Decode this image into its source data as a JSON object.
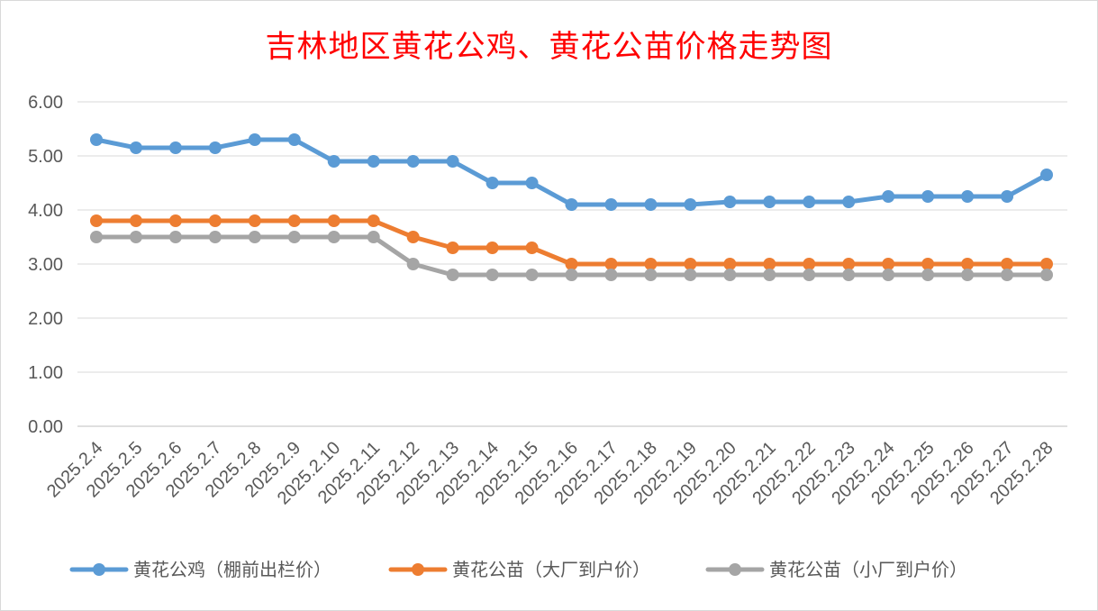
{
  "chart_data": {
    "type": "line",
    "title": "吉林地区黄花公鸡、黄花公苗价格走势图",
    "xlabel": "",
    "ylabel": "",
    "ylim": [
      0,
      6
    ],
    "y_ticks": [
      "0.00",
      "1.00",
      "2.00",
      "3.00",
      "4.00",
      "5.00",
      "6.00"
    ],
    "grid": true,
    "legend_position": "bottom",
    "categories": [
      "2025.2.4",
      "2025.2.5",
      "2025.2.6",
      "2025.2.7",
      "2025.2.8",
      "2025.2.9",
      "2025.2.10",
      "2025.2.11",
      "2025.2.12",
      "2025.2.13",
      "2025.2.14",
      "2025.2.15",
      "2025.2.16",
      "2025.2.17",
      "2025.2.18",
      "2025.2.19",
      "2025.2.20",
      "2025.2.21",
      "2025.2.22",
      "2025.2.23",
      "2025.2.24",
      "2025.2.25",
      "2025.2.26",
      "2025.2.27",
      "2025.2.28"
    ],
    "series": [
      {
        "name": "黄花公鸡（棚前出栏价）",
        "color": "#5b9bd5",
        "values": [
          5.3,
          5.15,
          5.15,
          5.15,
          5.3,
          5.3,
          4.9,
          4.9,
          4.9,
          4.9,
          4.5,
          4.5,
          4.1,
          4.1,
          4.1,
          4.1,
          4.15,
          4.15,
          4.15,
          4.15,
          4.25,
          4.25,
          4.25,
          4.25,
          4.65
        ]
      },
      {
        "name": "黄花公苗（大厂到户价）",
        "color": "#ed7d31",
        "values": [
          3.8,
          3.8,
          3.8,
          3.8,
          3.8,
          3.8,
          3.8,
          3.8,
          3.5,
          3.3,
          3.3,
          3.3,
          3.0,
          3.0,
          3.0,
          3.0,
          3.0,
          3.0,
          3.0,
          3.0,
          3.0,
          3.0,
          3.0,
          3.0,
          3.0
        ]
      },
      {
        "name": "黄花公苗（小厂到户价）",
        "color": "#a5a5a5",
        "values": [
          3.5,
          3.5,
          3.5,
          3.5,
          3.5,
          3.5,
          3.5,
          3.5,
          3.0,
          2.8,
          2.8,
          2.8,
          2.8,
          2.8,
          2.8,
          2.8,
          2.8,
          2.8,
          2.8,
          2.8,
          2.8,
          2.8,
          2.8,
          2.8,
          2.8
        ]
      }
    ]
  }
}
